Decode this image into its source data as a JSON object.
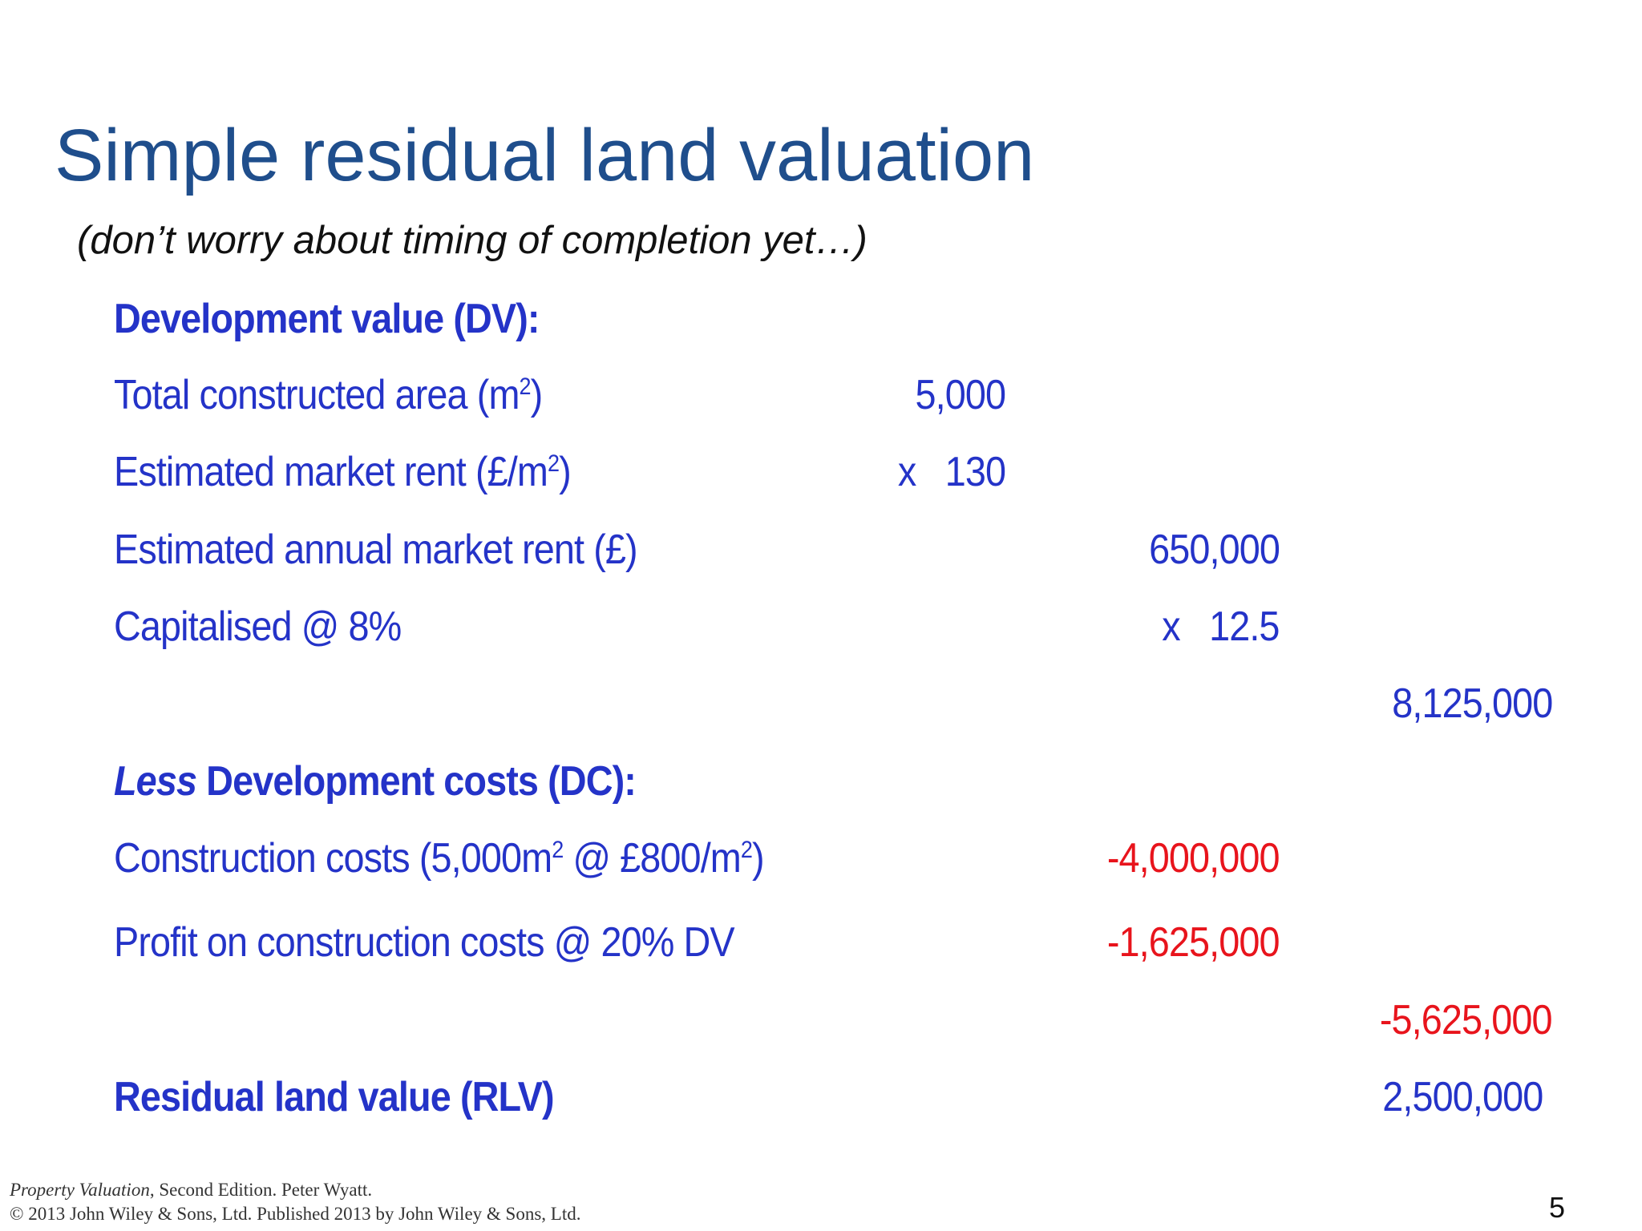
{
  "slide": {
    "title": "Simple residual land valuation",
    "subtitle": "(don’t worry about timing of completion yet…)",
    "page_number": "5"
  },
  "valuation": {
    "dv_heading": "Development value (DV):",
    "total_area": {
      "label": "Total constructed area (m",
      "sup": "2",
      "close": ")",
      "value": "5,000"
    },
    "market_rent": {
      "label": "Estimated market rent (£/m",
      "sup": "2",
      "close": ")",
      "value": "x   130"
    },
    "annual_rent": {
      "label": "Estimated annual market rent (£)",
      "value": "650,000"
    },
    "capitalised": {
      "label": "Capitalised @ 8%",
      "value": "x   12.5"
    },
    "dv_total": "8,125,000",
    "dc_heading_less": "Less",
    "dc_heading": " Development costs (DC):",
    "construction": {
      "label_a": "Construction costs (5,000m",
      "sup_a": "2",
      "label_b": " @ £800/m",
      "sup_b": "2",
      "close": ")",
      "value": "-4,000,000"
    },
    "profit": {
      "label": "Profit on construction costs @ 20% DV",
      "value": "-1,625,000"
    },
    "dc_total": "-5,625,000",
    "rlv": {
      "label": "Residual land value (RLV)",
      "value": "2,500,000"
    }
  },
  "footer": {
    "book_title": "Property Valuation",
    "line1_rest": ", Second Edition. Peter Wyatt.",
    "line2": "© 2013 John Wiley & Sons, Ltd. Published 2013 by John Wiley & Sons, Ltd."
  },
  "colors": {
    "title": "#1f4e8c",
    "body_blue": "#2433c8",
    "negative_red": "#e8141c"
  }
}
